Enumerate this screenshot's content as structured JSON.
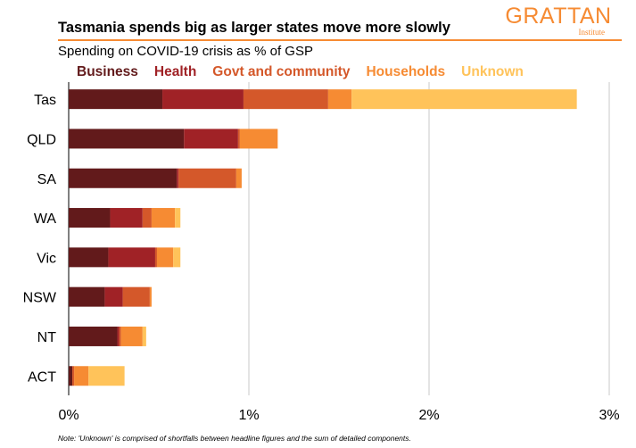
{
  "header": {
    "title": "Tasmania spends big as larger states move more slowly",
    "subtitle": "Spending on COVID-19 crisis as % of GSP",
    "logo_main": "GRATTAN",
    "logo_sub": "Institute",
    "note": "Note: 'Unknown' is comprised of shortfalls between headline figures and the sum of detailed components."
  },
  "colors": {
    "Business": "#621A1B",
    "Health": "#A02226",
    "Govt and community": "#D4582A",
    "Households": "#F68B33",
    "Unknown": "#FFC35A",
    "accent": "#F68B33",
    "grid": "#C8C8C8"
  },
  "chart_data": {
    "type": "bar",
    "orientation": "horizontal",
    "stacked": true,
    "categories": [
      "Tas",
      "QLD",
      "SA",
      "WA",
      "Vic",
      "NSW",
      "NT",
      "ACT"
    ],
    "series": [
      {
        "name": "Business",
        "values": [
          0.52,
          0.64,
          0.6,
          0.23,
          0.22,
          0.2,
          0.27,
          0.02
        ]
      },
      {
        "name": "Health",
        "values": [
          0.45,
          0.3,
          0.01,
          0.18,
          0.26,
          0.1,
          0.01,
          0.0
        ]
      },
      {
        "name": "Govt and community",
        "values": [
          0.47,
          0.01,
          0.32,
          0.05,
          0.01,
          0.15,
          0.01,
          0.01
        ]
      },
      {
        "name": "Households",
        "values": [
          0.13,
          0.21,
          0.03,
          0.13,
          0.09,
          0.01,
          0.12,
          0.08
        ]
      },
      {
        "name": "Unknown",
        "values": [
          1.25,
          0.0,
          0.0,
          0.03,
          0.04,
          0.0,
          0.02,
          0.2
        ]
      }
    ],
    "xlim": [
      0,
      3
    ],
    "xticks": [
      "0%",
      "1%",
      "2%",
      "3%"
    ],
    "grid": true,
    "legend_position": "top"
  }
}
